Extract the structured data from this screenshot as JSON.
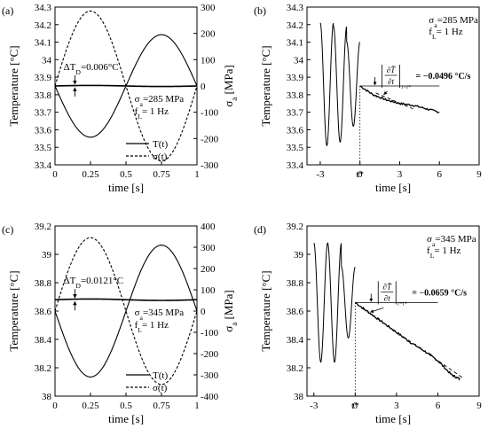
{
  "chart_data": [
    {
      "panel": "(a)",
      "type": "line",
      "xlabel": "time [s]",
      "ylabel": "Temperature [°C]",
      "y2label": "σ",
      "y2label_sub": "a",
      "y2label_unit": " [MPa]",
      "xticks": [
        "0",
        "0.25",
        "0.5",
        "0.75",
        "1"
      ],
      "yticks": [
        "33.4",
        "33.5",
        "33.6",
        "33.7",
        "33.8",
        "33.9",
        "34",
        "34.1",
        "34.2",
        "34.3"
      ],
      "y2ticks": [
        "300",
        "200",
        "100",
        "0",
        "-100",
        "-200",
        "-300"
      ],
      "xlim": [
        0,
        1
      ],
      "ylim": [
        33.4,
        34.3
      ],
      "y2lim": [
        -300,
        300
      ],
      "annotations": {
        "delta_t": "ΔT",
        "delta_t_sub": "D",
        "delta_t_value": "=0.006°C",
        "stress": "σ",
        "stress_sub": "a",
        "stress_value": "=285 MPa",
        "freq": "f",
        "freq_sub": "L",
        "freq_value": "= 1 Hz"
      },
      "legend": {
        "position": "bottom-right",
        "entries": [
          "T(t)",
          "σ(t)"
        ]
      },
      "series": [
        {
          "name": "T(t)",
          "axis": "left",
          "x": [
            0,
            0.25,
            0.5,
            0.75,
            1
          ],
          "y": [
            33.85,
            33.853,
            33.85,
            33.847,
            33.85
          ]
        },
        {
          "name": "σ(t)",
          "axis": "right",
          "x": [
            0,
            0.125,
            0.25,
            0.375,
            0.5,
            0.625,
            0.75,
            0.875,
            1
          ],
          "y": [
            0,
            202,
            285,
            202,
            0,
            -202,
            -285,
            -202,
            0
          ]
        },
        {
          "axis": "right",
          "x": [
            0.5,
            0.625,
            0.75,
            0.875,
            1
          ],
          "y": [
            0,
            138,
            195,
            138,
            0
          ]
        }
      ]
    },
    {
      "panel": "(b)",
      "type": "line",
      "xlabel": "time [s]",
      "ylabel": "Temperature [°C]",
      "xticks": [
        "-3",
        "0",
        "3",
        "6",
        "9"
      ],
      "x_marker_label": "t*",
      "yticks": [
        "33.4",
        "33.5",
        "33.6",
        "33.7",
        "33.8",
        "33.9",
        "34",
        "34.1",
        "34.2",
        "34.3"
      ],
      "xlim": [
        -4,
        9
      ],
      "ylim": [
        33.4,
        34.3
      ],
      "t_star": 0,
      "slope_value": "= −0.0496 °C/s",
      "annotations": {
        "stress": "σ",
        "stress_sub": "a",
        "stress_value": "=285 MPa",
        "freq": "f",
        "freq_sub": "L",
        "freq_value": "= 1 Hz"
      },
      "series": [
        {
          "name": "oscillation",
          "x": [
            -3.0,
            -2.5,
            -2.0,
            -1.5,
            -1.0,
            -0.5,
            0.0
          ],
          "center": 33.86,
          "amplitude": [
            0.35,
            0.33,
            0.24
          ],
          "period": 1.0
        },
        {
          "name": "decay",
          "x": [
            0.0,
            1.0,
            2.0,
            3.0,
            4.0,
            5.0,
            6.0
          ],
          "y": [
            33.85,
            33.8,
            33.77,
            33.75,
            33.74,
            33.72,
            33.7
          ]
        },
        {
          "name": "reference",
          "x": [
            0,
            6
          ],
          "y": [
            33.85,
            33.85
          ]
        },
        {
          "name": "tangent",
          "x": [
            1.2,
            4.0
          ],
          "y": [
            33.81,
            33.72
          ]
        }
      ]
    },
    {
      "panel": "(c)",
      "type": "line",
      "xlabel": "time [s]",
      "ylabel": "Temperature [°C]",
      "y2label": "σ",
      "y2label_sub": "a",
      "y2label_unit": " [MPa]",
      "xticks": [
        "0",
        "0.25",
        "0.5",
        "0.75",
        "1"
      ],
      "yticks": [
        "38",
        "38.2",
        "38.4",
        "38.6",
        "38.8",
        "39",
        "39.2"
      ],
      "y2ticks": [
        "400",
        "300",
        "200",
        "100",
        "0",
        "-100",
        "-200",
        "-300",
        "-400"
      ],
      "xlim": [
        0,
        1
      ],
      "ylim": [
        38,
        39.2
      ],
      "y2lim": [
        -400,
        400
      ],
      "annotations": {
        "delta_t": "ΔT",
        "delta_t_sub": "D",
        "delta_t_value": "=0.0121°C",
        "stress": "σ",
        "stress_sub": "a",
        "stress_value": "=345 MPa",
        "freq": "f",
        "freq_sub": "L",
        "freq_value": "= 1 Hz"
      },
      "legend": {
        "position": "bottom-right",
        "entries": [
          "T(t)",
          "σ(t)"
        ]
      },
      "series": [
        {
          "name": "T(t)",
          "axis": "left",
          "x": [
            0,
            0.25,
            0.5,
            0.75,
            1
          ],
          "y": [
            38.68,
            38.685,
            38.68,
            38.675,
            38.68
          ]
        },
        {
          "name": "σ(t)",
          "axis": "right",
          "x": [
            0,
            0.125,
            0.25,
            0.375,
            0.5,
            0.625,
            0.75,
            0.875,
            1
          ],
          "y": [
            0,
            244,
            345,
            244,
            0,
            -244,
            -345,
            -244,
            0
          ]
        },
        {
          "axis": "right",
          "x": [
            0.5,
            0.625,
            0.75,
            0.875,
            1
          ],
          "y": [
            0,
            220,
            310,
            220,
            0
          ]
        }
      ]
    },
    {
      "panel": "(d)",
      "type": "line",
      "xlabel": "time [s]",
      "ylabel": "Temperature [°C]",
      "xticks": [
        "-3",
        "0",
        "3",
        "6",
        "9"
      ],
      "x_marker_label": "t*",
      "yticks": [
        "38",
        "38.2",
        "38.4",
        "38.6",
        "38.8",
        "39",
        "39.2"
      ],
      "xlim": [
        -3.5,
        9
      ],
      "ylim": [
        38,
        39.2
      ],
      "t_star": 0,
      "slope_value": "= −0.0659 °C/s",
      "annotations": {
        "stress": "σ",
        "stress_sub": "a",
        "stress_value": "=345 MPa",
        "freq": "f",
        "freq_sub": "L",
        "freq_value": "= 1 Hz"
      },
      "series": [
        {
          "name": "oscillation",
          "x": [
            -3.0,
            -2.5,
            -2.0,
            -1.5,
            -1.0,
            -0.5,
            0.0
          ],
          "center": 38.66,
          "amplitude": [
            0.42,
            0.42,
            0.25
          ],
          "period": 1.0
        },
        {
          "name": "decay",
          "x": [
            0.0,
            1.0,
            2.0,
            3.0,
            4.0,
            5.0,
            6.0,
            7.0,
            7.6
          ],
          "y": [
            38.66,
            38.59,
            38.52,
            38.45,
            38.38,
            38.32,
            38.25,
            38.15,
            38.12
          ]
        },
        {
          "name": "reference",
          "x": [
            0,
            6
          ],
          "y": [
            38.66,
            38.66
          ]
        },
        {
          "name": "tangent",
          "x": [
            0.5,
            7.8
          ],
          "y": [
            38.62,
            38.13
          ]
        }
      ]
    }
  ]
}
